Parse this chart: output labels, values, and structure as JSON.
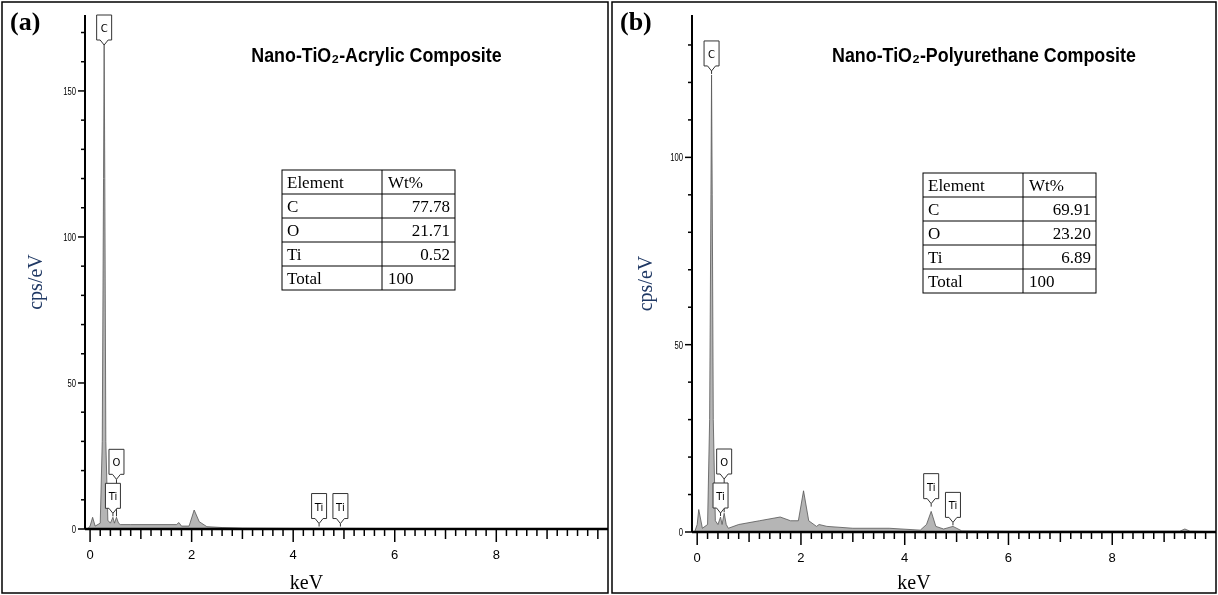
{
  "chart_data": [
    {
      "type": "area",
      "title": "Nano-TiO₂-Acrylic Composite",
      "xlabel": "keV",
      "ylabel": "cps/eV",
      "xlim": [
        -0.1,
        10.2
      ],
      "ylim": [
        0,
        176
      ],
      "xticks": [
        0,
        {
          "value": 0.2,
          "label": null
        },
        {
          "value": 0.4,
          "label": null
        },
        {
          "value": 0.6,
          "label": null
        },
        {
          "value": 0.8,
          "label": null
        },
        {
          "value": 1,
          "label": null
        },
        {
          "value": 1.2,
          "label": null
        },
        {
          "value": 1.4,
          "label": null
        },
        {
          "value": 1.6,
          "label": null
        },
        {
          "value": 1.8,
          "label": null
        },
        2,
        {
          "value": 2.2,
          "label": null
        },
        {
          "value": 2.4,
          "label": null
        },
        {
          "value": 2.6,
          "label": null
        },
        {
          "value": 2.8,
          "label": null
        },
        {
          "value": 3,
          "label": null
        },
        {
          "value": 3.2,
          "label": null
        },
        {
          "value": 3.4,
          "label": null
        },
        {
          "value": 3.6,
          "label": null
        },
        {
          "value": 3.8,
          "label": null
        },
        4,
        {
          "value": 4.2,
          "label": null
        },
        {
          "value": 4.4,
          "label": null
        },
        {
          "value": 4.6,
          "label": null
        },
        {
          "value": 4.8,
          "label": null
        },
        {
          "value": 5,
          "label": null
        },
        {
          "value": 5.2,
          "label": null
        },
        {
          "value": 5.4,
          "label": null
        },
        {
          "value": 5.6,
          "label": null
        },
        {
          "value": 5.8,
          "label": null
        },
        6,
        {
          "value": 6.2,
          "label": null
        },
        {
          "value": 6.4,
          "label": null
        },
        {
          "value": 6.6,
          "label": null
        },
        {
          "value": 6.8,
          "label": null
        },
        {
          "value": 7,
          "label": null
        },
        {
          "value": 7.2,
          "label": null
        },
        {
          "value": 7.4,
          "label": null
        },
        {
          "value": 7.6,
          "label": null
        },
        {
          "value": 7.8,
          "label": null
        },
        8,
        {
          "value": 8.2,
          "label": null
        },
        {
          "value": 8.4,
          "label": null
        },
        {
          "value": 8.6,
          "label": null
        },
        {
          "value": 8.8,
          "label": null
        },
        {
          "value": 9,
          "label": null
        },
        {
          "value": 9.2,
          "label": null
        },
        {
          "value": 9.4,
          "label": null
        },
        {
          "value": 9.6,
          "label": null
        },
        {
          "value": 9.8,
          "label": null
        },
        {
          "value": 10,
          "label": null
        }
      ],
      "yticks": [
        0,
        {
          "value": 10,
          "label": null
        },
        {
          "value": 20,
          "label": null
        },
        {
          "value": 30,
          "label": null
        },
        {
          "value": 40,
          "label": null
        },
        50,
        {
          "value": 60,
          "label": null
        },
        {
          "value": 70,
          "label": null
        },
        {
          "value": 80,
          "label": null
        },
        {
          "value": 90,
          "label": null
        },
        100,
        {
          "value": 110,
          "label": null
        },
        {
          "value": 120,
          "label": null
        },
        {
          "value": 130,
          "label": null
        },
        {
          "value": 140,
          "label": null
        },
        150,
        {
          "value": 160,
          "label": null
        },
        {
          "value": 170,
          "label": null
        }
      ],
      "series": [
        {
          "color": "#b5b5b5",
          "x": [
            -0.05,
            0,
            0.05,
            0.1,
            0.2,
            0.24,
            0.265,
            0.277,
            0.29,
            0.31,
            0.35,
            0.4,
            0.45,
            0.48,
            0.52,
            0.56,
            0.6,
            0.8,
            1.2,
            1.7,
            1.75,
            1.8,
            1.95,
            2.05,
            2.15,
            2.3,
            2.6,
            3,
            4,
            5,
            7,
            10,
            10.2
          ],
          "values": [
            0,
            1,
            4,
            1,
            2,
            30,
            120,
            166,
            120,
            30,
            3,
            2,
            4,
            2,
            4,
            2,
            1.5,
            1.5,
            1.5,
            1.5,
            2.2,
            1,
            1,
            6.5,
            2.5,
            0.8,
            0.5,
            0.3,
            0.2,
            0.2,
            0.1,
            0.1,
            0.1
          ]
        }
      ],
      "annotations": [
        "(a)",
        "Element",
        "Wt%",
        "C",
        "77.78",
        "O",
        "21.71",
        "Ti",
        "0.52",
        "Total",
        "100",
        {
          "text": "C",
          "x": 0.277,
          "y": 166
        },
        {
          "text": "O",
          "x": 0.52,
          "y": 4
        },
        {
          "text": "Ti",
          "x": 0.45,
          "y": 4
        },
        {
          "text": "Ti",
          "x": 4.51,
          "y": 0.5
        },
        {
          "text": "Ti",
          "x": 4.93,
          "y": 0.5
        }
      ]
    },
    {
      "type": "area",
      "title": "Nano-TiO₂-Polyurethane Composite",
      "xlabel": "keV",
      "ylabel": "cps/eV",
      "xlim": [
        -0.1,
        10
      ],
      "ylim": [
        0,
        138
      ],
      "xticks": [
        0,
        {
          "value": 0.2,
          "label": null
        },
        {
          "value": 0.4,
          "label": null
        },
        {
          "value": 0.6,
          "label": null
        },
        {
          "value": 0.8,
          "label": null
        },
        {
          "value": 1,
          "label": null
        },
        {
          "value": 1.2,
          "label": null
        },
        {
          "value": 1.4,
          "label": null
        },
        {
          "value": 1.6,
          "label": null
        },
        {
          "value": 1.8,
          "label": null
        },
        2,
        {
          "value": 2.2,
          "label": null
        },
        {
          "value": 2.4,
          "label": null
        },
        {
          "value": 2.6,
          "label": null
        },
        {
          "value": 2.8,
          "label": null
        },
        {
          "value": 3,
          "label": null
        },
        {
          "value": 3.2,
          "label": null
        },
        {
          "value": 3.4,
          "label": null
        },
        {
          "value": 3.6,
          "label": null
        },
        {
          "value": 3.8,
          "label": null
        },
        4,
        {
          "value": 4.2,
          "label": null
        },
        {
          "value": 4.4,
          "label": null
        },
        {
          "value": 4.6,
          "label": null
        },
        {
          "value": 4.8,
          "label": null
        },
        {
          "value": 5,
          "label": null
        },
        {
          "value": 5.2,
          "label": null
        },
        {
          "value": 5.4,
          "label": null
        },
        {
          "value": 5.6,
          "label": null
        },
        {
          "value": 5.8,
          "label": null
        },
        6,
        {
          "value": 6.2,
          "label": null
        },
        {
          "value": 6.4,
          "label": null
        },
        {
          "value": 6.6,
          "label": null
        },
        {
          "value": 6.8,
          "label": null
        },
        {
          "value": 7,
          "label": null
        },
        {
          "value": 7.2,
          "label": null
        },
        {
          "value": 7.4,
          "label": null
        },
        {
          "value": 7.6,
          "label": null
        },
        {
          "value": 7.8,
          "label": null
        },
        8,
        {
          "value": 8.2,
          "label": null
        },
        {
          "value": 8.4,
          "label": null
        },
        {
          "value": 8.6,
          "label": null
        },
        {
          "value": 8.8,
          "label": null
        },
        {
          "value": 9,
          "label": null
        },
        {
          "value": 9.2,
          "label": null
        },
        {
          "value": 9.4,
          "label": null
        },
        {
          "value": 9.6,
          "label": null
        },
        {
          "value": 9.8,
          "label": null
        }
      ],
      "yticks": [
        0,
        {
          "value": 10,
          "label": null
        },
        {
          "value": 20,
          "label": null
        },
        {
          "value": 30,
          "label": null
        },
        {
          "value": 40,
          "label": null
        },
        50,
        {
          "value": 60,
          "label": null
        },
        {
          "value": 70,
          "label": null
        },
        {
          "value": 80,
          "label": null
        },
        {
          "value": 90,
          "label": null
        },
        100,
        {
          "value": 110,
          "label": null
        },
        {
          "value": 120,
          "label": null
        },
        {
          "value": 130,
          "label": null
        }
      ],
      "series": [
        {
          "color": "#b5b5b5",
          "x": [
            -0.05,
            0,
            0.03,
            0.1,
            0.2,
            0.24,
            0.265,
            0.277,
            0.29,
            0.31,
            0.35,
            0.4,
            0.45,
            0.48,
            0.52,
            0.56,
            0.6,
            0.8,
            1.2,
            1.6,
            1.8,
            1.95,
            2.05,
            2.15,
            2.3,
            2.35,
            2.5,
            3,
            3.7,
            4.3,
            4.42,
            4.51,
            4.6,
            4.75,
            4.93,
            5.1,
            6,
            9.3,
            9.4,
            9.5,
            10
          ],
          "values": [
            0,
            2,
            6,
            1,
            2,
            30,
            90,
            122,
            90,
            30,
            3,
            2,
            4,
            2,
            5,
            2,
            1,
            2,
            3,
            4,
            3,
            3,
            11,
            3,
            1.5,
            2,
            1.5,
            1,
            1,
            0.5,
            2,
            5.5,
            1.5,
            0.8,
            1.5,
            0.3,
            0.2,
            0.2,
            0.8,
            0.2,
            0.1
          ]
        }
      ],
      "annotations": [
        "(b)",
        "Element",
        "Wt%",
        "C",
        "69.91",
        "O",
        "23.20",
        "Ti",
        "6.89",
        "Total",
        "100",
        {
          "text": "C",
          "x": 0.277,
          "y": 122
        },
        {
          "text": "O",
          "x": 0.52,
          "y": 5
        },
        {
          "text": "Ti",
          "x": 0.45,
          "y": 4
        },
        {
          "text": "Ti",
          "x": 4.51,
          "y": 6.5
        },
        {
          "text": "Ti",
          "x": 4.93,
          "y": 1.5
        }
      ]
    }
  ]
}
